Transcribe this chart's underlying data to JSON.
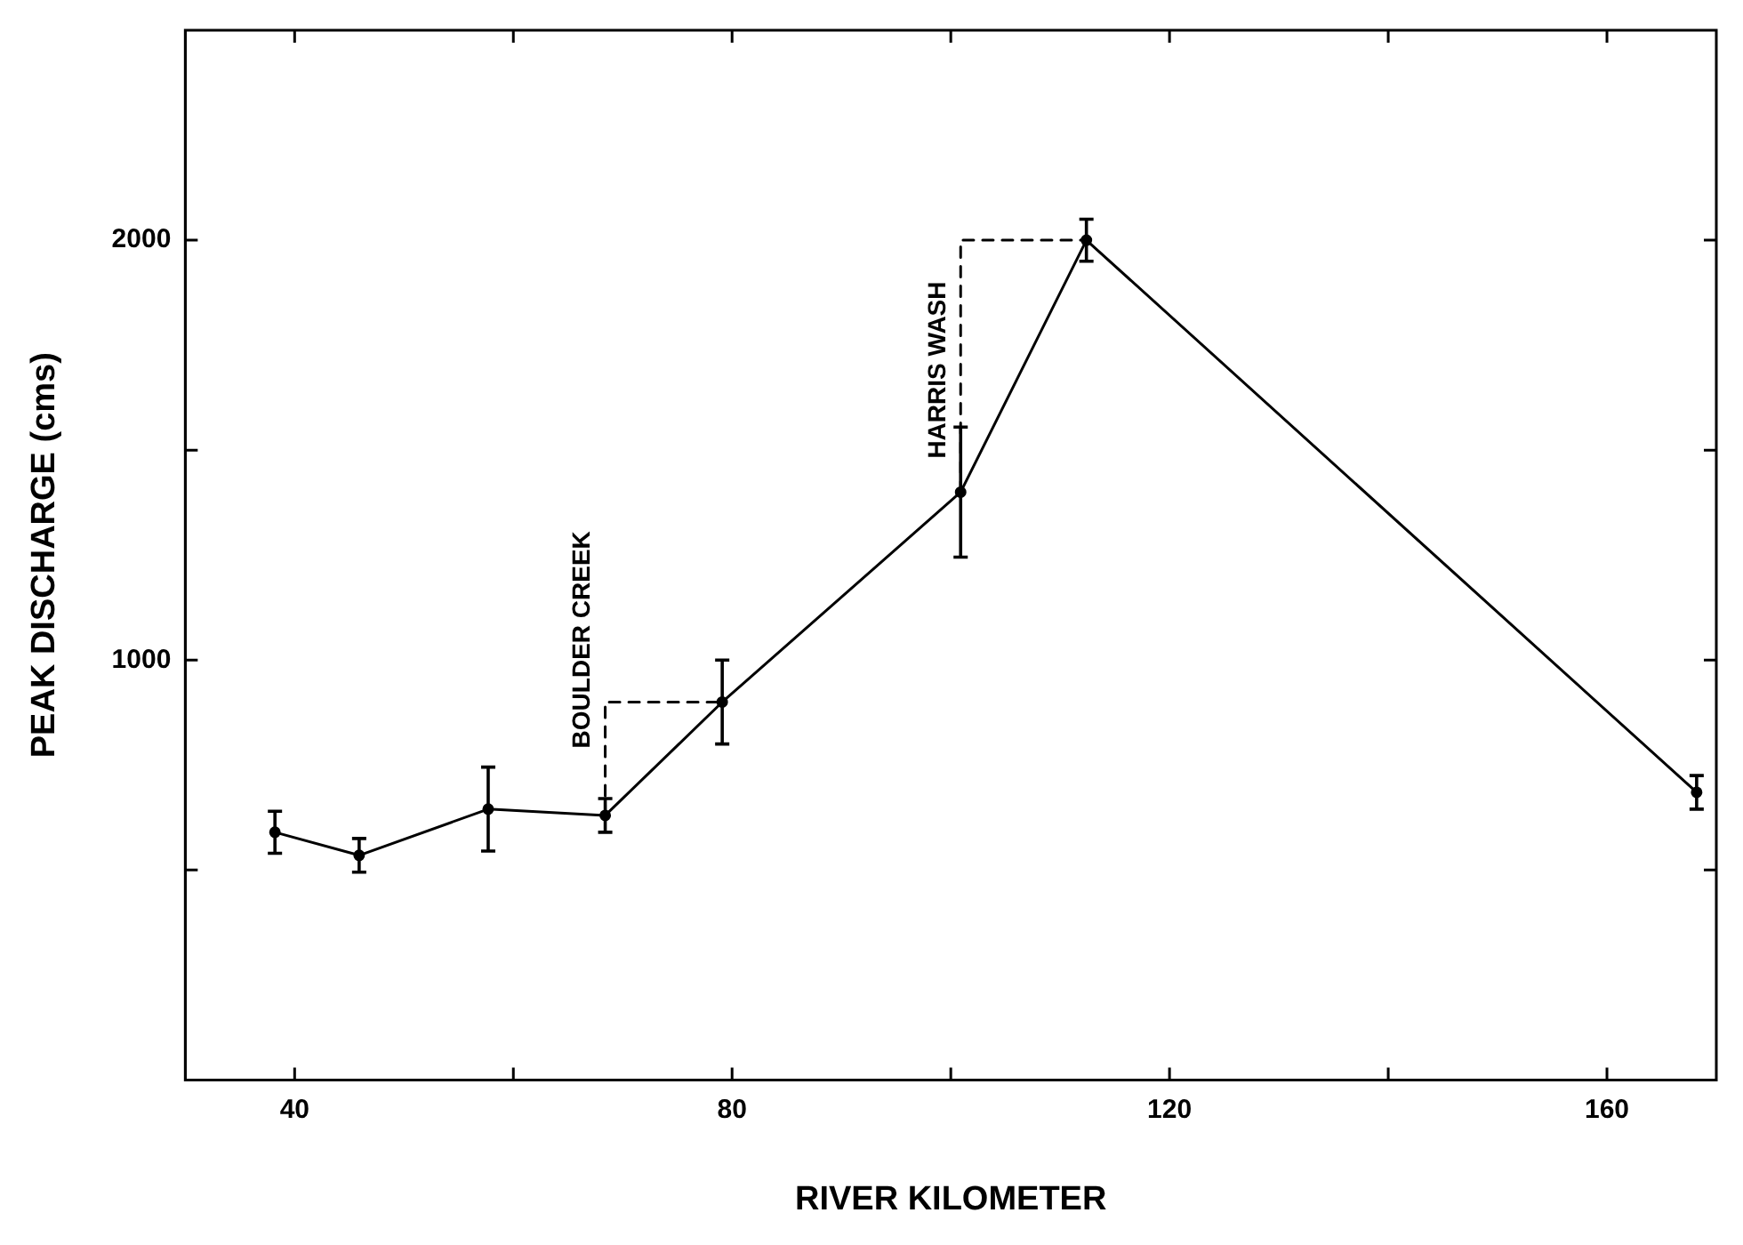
{
  "chart_data": {
    "type": "line",
    "xlabel": "RIVER KILOMETER",
    "ylabel": "PEAK DISCHARGE (cms)",
    "xlim": [
      30,
      170
    ],
    "ylim": [
      0,
      2500
    ],
    "xticks": [
      40,
      {
        "value": 60,
        "label": null
      },
      80,
      {
        "value": 100,
        "label": null
      },
      120,
      {
        "value": 140,
        "label": null
      },
      160
    ],
    "yticks": [
      {
        "value": 500,
        "label": null
      },
      1000,
      {
        "value": 1500,
        "label": null
      },
      2000
    ],
    "grid": false,
    "legend": false,
    "marker": "circle",
    "line_style": "solid",
    "series": [
      {
        "color": "#000000",
        "x": [
          38.2,
          45.9,
          57.7,
          68.4,
          79.1,
          100.9,
          112.4,
          168.2
        ],
        "values": [
          590,
          535,
          645,
          630,
          900,
          1400,
          2000,
          685
        ],
        "errors": [
          50,
          40,
          100,
          40,
          100,
          155,
          50,
          40
        ]
      },
      {
        "color": "#000000",
        "type": "line",
        "line_style": "dashed",
        "marker": "none",
        "x": [
          68.4,
          68.4,
          79.1
        ],
        "values": [
          630,
          900,
          900
        ]
      },
      {
        "color": "#000000",
        "type": "line",
        "line_style": "dashed",
        "marker": "none",
        "x": [
          100.9,
          100.9,
          112.4
        ],
        "values": [
          1400,
          2000,
          2000
        ]
      }
    ],
    "annotations": [
      {
        "text": "BOULDER CREEK",
        "x": 67.8,
        "y": 790
      },
      {
        "text": "HARRIS WASH",
        "x": 100.3,
        "y": 1480
      }
    ]
  }
}
